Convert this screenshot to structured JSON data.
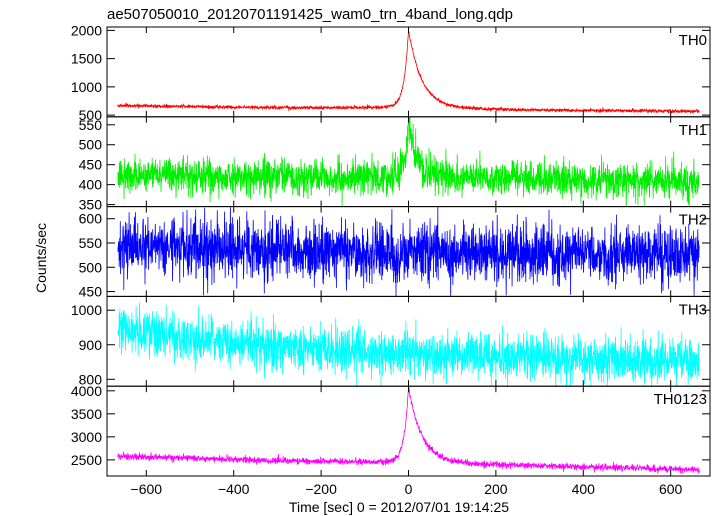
{
  "chart_data": {
    "type": "line",
    "title": "ae507050010_20120701191425_wam0_trn_4band_long.qdp",
    "xlabel": "Time [sec] 0 = 2012/07/01 19:14:25",
    "ylabel": "Counts/sec",
    "xlim": [
      -690,
      690
    ],
    "x_ticks": [
      -600,
      -400,
      -200,
      0,
      200,
      400,
      600
    ],
    "x_tick_labels": [
      "−600",
      "−400",
      "−200",
      "0",
      "200",
      "400",
      "600"
    ],
    "grid": false,
    "panels": [
      {
        "name": "TH0",
        "color": "#ff0000",
        "ylim": [
          470,
          2060
        ],
        "y_ticks": [
          500,
          1000,
          1500,
          2000
        ],
        "y_tick_labels": [
          "500",
          "1000",
          "1500",
          "2000"
        ],
        "x_range": [
          -665,
          665
        ],
        "baseline": [
          [
            -665,
            670
          ],
          [
            -400,
            640
          ],
          [
            -200,
            630
          ],
          [
            -50,
            640
          ],
          [
            300,
            590
          ],
          [
            665,
            570
          ]
        ],
        "noise": 15,
        "peak": {
          "x": 0,
          "height": 2030,
          "rise_tau": 10,
          "decay_tau": 30
        },
        "peak_base": 650
      },
      {
        "name": "TH1",
        "color": "#00ee00",
        "ylim": [
          345,
          570
        ],
        "y_ticks": [
          350,
          400,
          450,
          500,
          550
        ],
        "y_tick_labels": [
          "350",
          "400",
          "450",
          "500",
          "550"
        ],
        "x_range": [
          -665,
          665
        ],
        "baseline": [
          [
            -665,
            425
          ],
          [
            -300,
            420
          ],
          [
            0,
            420
          ],
          [
            300,
            415
          ],
          [
            665,
            405
          ]
        ],
        "noise": 22,
        "peak": {
          "x": 0,
          "height": 555,
          "rise_tau": 8,
          "decay_tau": 18
        },
        "peak_base": 420
      },
      {
        "name": "TH2",
        "color": "#0000ff",
        "ylim": [
          440,
          625
        ],
        "y_ticks": [
          450,
          500,
          550,
          600
        ],
        "y_tick_labels": [
          "450",
          "500",
          "550",
          "600"
        ],
        "x_range": [
          -665,
          665
        ],
        "baseline": [
          [
            -665,
            545
          ],
          [
            0,
            530
          ],
          [
            665,
            525
          ]
        ],
        "noise": 30,
        "peak": null,
        "peak_base": 0
      },
      {
        "name": "TH3",
        "color": "#00ffff",
        "ylim": [
          780,
          1040
        ],
        "y_ticks": [
          800,
          900,
          1000
        ],
        "y_tick_labels": [
          "800",
          "900",
          "1000"
        ],
        "x_range": [
          -665,
          665
        ],
        "baseline": [
          [
            -665,
            950
          ],
          [
            -550,
            925
          ],
          [
            -300,
            895
          ],
          [
            0,
            875
          ],
          [
            300,
            860
          ],
          [
            665,
            855
          ]
        ],
        "noise": 32,
        "peak": null,
        "peak_base": 0
      },
      {
        "name": "TH0123",
        "color": "#ff00ff",
        "ylim": [
          2150,
          4100
        ],
        "y_ticks": [
          2500,
          3000,
          3500,
          4000
        ],
        "y_tick_labels": [
          "2500",
          "3000",
          "3500",
          "4000"
        ],
        "x_range": [
          -665,
          665
        ],
        "baseline": [
          [
            -665,
            2580
          ],
          [
            -300,
            2480
          ],
          [
            0,
            2450
          ],
          [
            300,
            2370
          ],
          [
            665,
            2290
          ]
        ],
        "noise": 35,
        "peak": {
          "x": 0,
          "height": 4080,
          "rise_tau": 10,
          "decay_tau": 30
        },
        "peak_base": 2450
      }
    ]
  }
}
